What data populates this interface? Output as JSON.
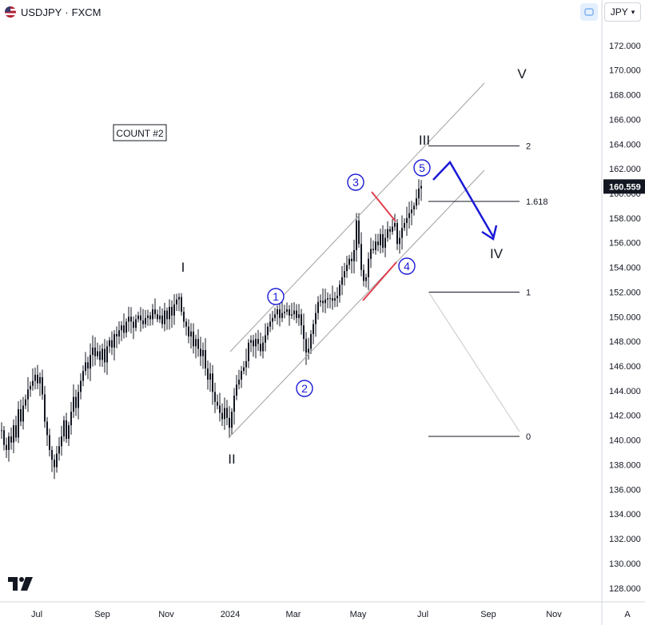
{
  "header": {
    "symbol": "USDJPY",
    "separator": "·",
    "source": "FXCM",
    "currency": "JPY",
    "auto_label": "A"
  },
  "colors": {
    "candle": "#131722",
    "annotation_blue": "#1a1ad6",
    "annotation_red": "#e0404f",
    "channel": "#a0a0a0",
    "price_badge_bg": "#131722",
    "price_badge_text": "#ffffff"
  },
  "chart_data": {
    "type": "candlestick",
    "title": "",
    "symbol": "USDJPY",
    "source": "FXCM",
    "y_unit": "JPY",
    "ylim": [
      127,
      175
    ],
    "y_ticks": [
      "128.000",
      "130.000",
      "132.000",
      "134.000",
      "136.000",
      "138.000",
      "140.000",
      "142.000",
      "144.000",
      "146.000",
      "148.000",
      "150.000",
      "152.000",
      "154.000",
      "156.000",
      "158.000",
      "160.000",
      "162.000",
      "164.000",
      "166.000",
      "168.000",
      "170.000",
      "172.000"
    ],
    "x_ticks": [
      "Jul",
      "Sep",
      "Nov",
      "2024",
      "Mar",
      "May",
      "Jul",
      "Sep",
      "Nov"
    ],
    "last_price": "160.559",
    "grid": false,
    "series_close": [
      [
        0,
        140.8
      ],
      [
        3,
        139.6
      ],
      [
        6,
        139.2
      ],
      [
        9,
        140.3
      ],
      [
        12,
        139.8
      ],
      [
        15,
        141.2
      ],
      [
        18,
        140.2
      ],
      [
        21,
        142.5
      ],
      [
        24,
        141.5
      ],
      [
        27,
        142.8
      ],
      [
        30,
        143.3
      ],
      [
        33,
        144.1
      ],
      [
        36,
        144.4
      ],
      [
        39,
        144.8
      ],
      [
        42,
        145.3
      ],
      [
        45,
        144.6
      ],
      [
        48,
        145.1
      ],
      [
        51,
        143.7
      ],
      [
        54,
        141.5
      ],
      [
        57,
        140.4
      ],
      [
        60,
        139.2
      ],
      [
        63,
        138.4
      ],
      [
        66,
        137.8
      ],
      [
        69,
        138.9
      ],
      [
        72,
        139.5
      ],
      [
        75,
        140.3
      ],
      [
        78,
        141.6
      ],
      [
        81,
        140.1
      ],
      [
        84,
        141.2
      ],
      [
        87,
        142.3
      ],
      [
        90,
        143.5
      ],
      [
        93,
        142.6
      ],
      [
        96,
        143.9
      ],
      [
        99,
        144.8
      ],
      [
        102,
        145.6
      ],
      [
        105,
        146.3
      ],
      [
        108,
        145.8
      ],
      [
        111,
        146.9
      ],
      [
        114,
        147.5
      ],
      [
        117,
        146.8
      ],
      [
        120,
        147.2
      ],
      [
        123,
        146.5
      ],
      [
        126,
        147.4
      ],
      [
        129,
        146.3
      ],
      [
        132,
        147.6
      ],
      [
        135,
        148.1
      ],
      [
        138,
        147.5
      ],
      [
        141,
        148.6
      ],
      [
        144,
        148.4
      ],
      [
        147,
        148.9
      ],
      [
        150,
        149.3
      ],
      [
        153,
        148.7
      ],
      [
        156,
        149.6
      ],
      [
        159,
        150.0
      ],
      [
        162,
        149.6
      ],
      [
        165,
        149.1
      ],
      [
        168,
        149.8
      ],
      [
        171,
        150.1
      ],
      [
        174,
        149.7
      ],
      [
        177,
        149.4
      ],
      [
        180,
        149.9
      ],
      [
        183,
        150.1
      ],
      [
        186,
        149.8
      ],
      [
        189,
        150.6
      ],
      [
        192,
        150.2
      ],
      [
        195,
        149.8
      ],
      [
        198,
        150.1
      ],
      [
        201,
        149.4
      ],
      [
        204,
        150.5
      ],
      [
        207,
        149.8
      ],
      [
        210,
        150.8
      ],
      [
        213,
        150.1
      ],
      [
        216,
        151.0
      ],
      [
        219,
        151.4
      ],
      [
        222,
        151.6
      ],
      [
        225,
        150.4
      ],
      [
        228,
        149.6
      ],
      [
        231,
        149.2
      ],
      [
        234,
        148.4
      ],
      [
        237,
        148.8
      ],
      [
        240,
        147.6
      ],
      [
        243,
        148.2
      ],
      [
        246,
        147.4
      ],
      [
        249,
        146.8
      ],
      [
        252,
        147.3
      ],
      [
        255,
        145.8
      ],
      [
        258,
        144.9
      ],
      [
        261,
        145.4
      ],
      [
        264,
        143.9
      ],
      [
        267,
        143.1
      ],
      [
        270,
        142.8
      ],
      [
        273,
        142.2
      ],
      [
        276,
        141.7
      ],
      [
        279,
        142.6
      ],
      [
        282,
        141.8
      ],
      [
        285,
        141.0
      ],
      [
        288,
        142.3
      ],
      [
        291,
        143.6
      ],
      [
        294,
        144.5
      ],
      [
        297,
        144.9
      ],
      [
        300,
        145.6
      ],
      [
        303,
        145.9
      ],
      [
        306,
        146.4
      ],
      [
        309,
        147.9
      ],
      [
        312,
        148.1
      ],
      [
        315,
        147.6
      ],
      [
        318,
        148.2
      ],
      [
        321,
        147.8
      ],
      [
        324,
        147.2
      ],
      [
        327,
        147.9
      ],
      [
        330,
        148.5
      ],
      [
        333,
        149.2
      ],
      [
        336,
        149.6
      ],
      [
        339,
        149.9
      ],
      [
        342,
        150.2
      ],
      [
        345,
        150.6
      ],
      [
        348,
        149.9
      ],
      [
        351,
        150.3
      ],
      [
        354,
        150.4
      ],
      [
        357,
        150.6
      ],
      [
        360,
        150.1
      ],
      [
        363,
        150.2
      ],
      [
        366,
        150.5
      ],
      [
        369,
        149.9
      ],
      [
        372,
        150.2
      ],
      [
        375,
        149.3
      ],
      [
        378,
        148.2
      ],
      [
        381,
        147.1
      ],
      [
        384,
        147.4
      ],
      [
        387,
        148.6
      ],
      [
        390,
        149.4
      ],
      [
        393,
        150.3
      ],
      [
        396,
        151.2
      ],
      [
        399,
        151.3
      ],
      [
        402,
        151.1
      ],
      [
        405,
        151.4
      ],
      [
        408,
        151.5
      ],
      [
        411,
        151.5
      ],
      [
        414,
        151.3
      ],
      [
        417,
        151.5
      ],
      [
        420,
        151.7
      ],
      [
        423,
        152.6
      ],
      [
        426,
        153.2
      ],
      [
        429,
        153.7
      ],
      [
        432,
        154.2
      ],
      [
        435,
        154.7
      ],
      [
        438,
        154.5
      ],
      [
        441,
        155.4
      ],
      [
        444,
        157.8
      ],
      [
        447,
        155.9
      ],
      [
        450,
        153.8
      ],
      [
        453,
        152.9
      ],
      [
        456,
        153.2
      ],
      [
        459,
        154.7
      ],
      [
        462,
        155.5
      ],
      [
        465,
        155.4
      ],
      [
        468,
        156.1
      ],
      [
        471,
        155.8
      ],
      [
        474,
        156.7
      ],
      [
        477,
        155.6
      ],
      [
        480,
        156.4
      ],
      [
        483,
        157.1
      ],
      [
        486,
        156.9
      ],
      [
        489,
        157.3
      ],
      [
        492,
        157.6
      ],
      [
        495,
        155.9
      ],
      [
        498,
        156.4
      ],
      [
        501,
        157.2
      ],
      [
        504,
        157.6
      ],
      [
        507,
        158.0
      ],
      [
        510,
        158.4
      ],
      [
        513,
        158.7
      ],
      [
        516,
        159.0
      ],
      [
        519,
        159.6
      ],
      [
        522,
        160.4
      ],
      [
        525,
        160.6
      ]
    ],
    "annotations": [
      {
        "label": "COUNT #2",
        "kind": "boxed-text"
      },
      {
        "label": "I",
        "kind": "wave-primary"
      },
      {
        "label": "II",
        "kind": "wave-primary"
      },
      {
        "label": "III",
        "kind": "wave-primary"
      },
      {
        "label": "IV",
        "kind": "wave-primary"
      },
      {
        "label": "V",
        "kind": "wave-primary"
      },
      {
        "label": "1",
        "kind": "wave-minor-circled"
      },
      {
        "label": "2",
        "kind": "wave-minor-circled"
      },
      {
        "label": "3",
        "kind": "wave-minor-circled"
      },
      {
        "label": "4",
        "kind": "wave-minor-circled"
      },
      {
        "label": "5",
        "kind": "wave-minor-circled"
      }
    ],
    "fibonacci_levels": [
      {
        "label": "2",
        "price": 163.85
      },
      {
        "label": "1.618",
        "price": 159.35
      },
      {
        "label": "1",
        "price": 152.0
      },
      {
        "label": "0",
        "price": 140.3
      }
    ]
  }
}
